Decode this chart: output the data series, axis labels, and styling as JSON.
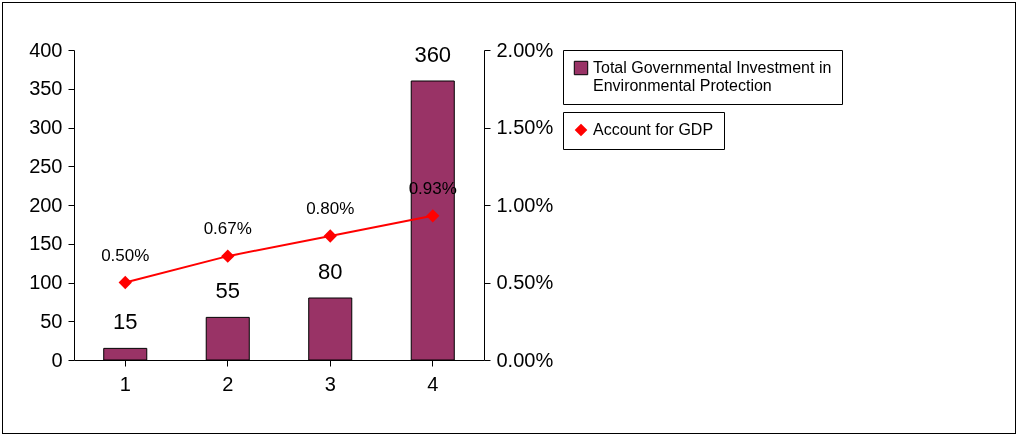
{
  "chart_data": {
    "type": "bar",
    "categories": [
      "1",
      "2",
      "3",
      "4"
    ],
    "series": [
      {
        "name": "Total Governmental Investment in Environmental Protection",
        "color": "#993366",
        "values": [
          15,
          55,
          80,
          360
        ],
        "value_labels": [
          "15",
          "55",
          "80",
          "360"
        ]
      },
      {
        "name": "Account for GDP",
        "type": "line",
        "axis": "y2",
        "color": "#ff0000",
        "values": [
          0.5,
          0.67,
          0.8,
          0.93
        ],
        "value_labels": [
          "0.50%",
          "0.67%",
          "0.80%",
          "0.93%"
        ]
      }
    ],
    "ylim": [
      0,
      400
    ],
    "yticks": [
      0,
      50,
      100,
      150,
      200,
      250,
      300,
      350,
      400
    ],
    "y2lim": [
      0,
      2
    ],
    "y2ticks": [
      {
        "value": 0,
        "label": "0.00%"
      },
      {
        "value": 0.5,
        "label": "0.50%"
      },
      {
        "value": 1,
        "label": "1.00%"
      },
      {
        "value": 1.5,
        "label": "1.50%"
      },
      {
        "value": 2,
        "label": "2.00%"
      }
    ],
    "grid": false,
    "legend": "right",
    "marker": "diamond",
    "line_style": "solid"
  }
}
